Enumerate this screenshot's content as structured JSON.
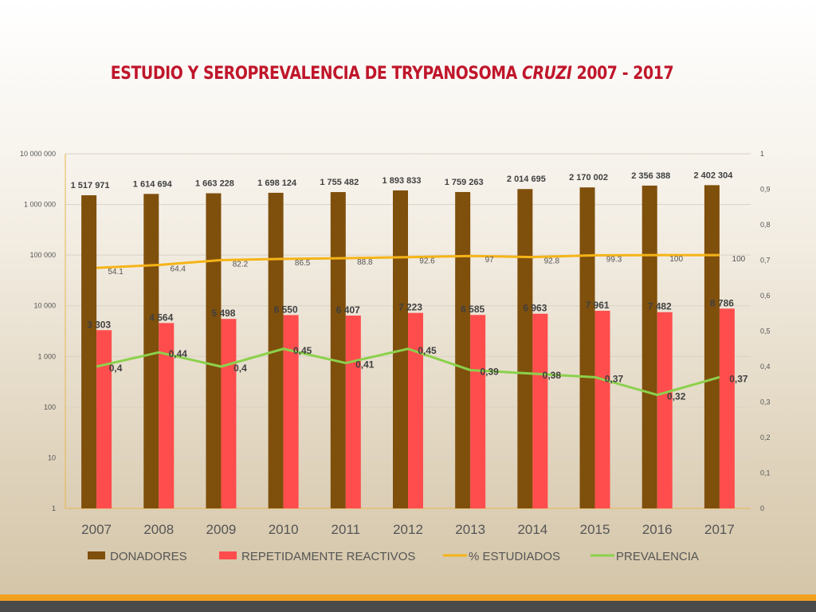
{
  "slide": {
    "title_main": "ESTUDIO Y SEROPREVALENCIA DE TRYPANOSOMA ",
    "title_italic": "CRUZI",
    "title_tail": " 2007 - 2017"
  },
  "colors": {
    "donadores": "#7f4f0c",
    "reactivos": "#ff4d4d",
    "estudiados": "#f5b417",
    "prevalencia": "#8bd14c",
    "title": "#c0162b"
  },
  "chart_data": {
    "type": "bar",
    "categories": [
      "2007",
      "2008",
      "2009",
      "2010",
      "2011",
      "2012",
      "2013",
      "2014",
      "2015",
      "2016",
      "2017"
    ],
    "y_left": {
      "scale": "log",
      "ylim": [
        1,
        10000000
      ],
      "tick_labels": [
        "1",
        "10",
        "100",
        "1 000",
        "10 000",
        "100 000",
        "1 000 000",
        "10 000 000"
      ]
    },
    "y_right": {
      "scale": "linear",
      "ylim": [
        0,
        1
      ],
      "tick_labels": [
        "0",
        "0,1",
        "0,2",
        "0,3",
        "0,4",
        "0,5",
        "0,6",
        "0,7",
        "0,8",
        "0,9",
        "1"
      ]
    },
    "grid": true,
    "legend_position": "bottom",
    "series": [
      {
        "name": "DONADORES",
        "kind": "bar",
        "axis": "left",
        "values": [
          1517971,
          1614694,
          1663228,
          1698124,
          1755482,
          1893833,
          1759263,
          2014695,
          2170002,
          2356388,
          2402304
        ],
        "labels": [
          "1 517 971",
          "1 614 694",
          "1 663 228",
          "1 698 124",
          "1 755 482",
          "1 893 833",
          "1 759 263",
          "2 014 695",
          "2 170 002",
          "2 356 388",
          "2 402 304"
        ]
      },
      {
        "name": "REPETIDAMENTE REACTIVOS",
        "kind": "bar",
        "axis": "left",
        "values": [
          3303,
          4564,
          5498,
          6550,
          6407,
          7223,
          6585,
          6963,
          7961,
          7482,
          8786
        ],
        "labels": [
          "3 303",
          "4 564",
          "5 498",
          "6 550",
          "6 407",
          "7 223",
          "6 585",
          "6 963",
          "7 961",
          "7 482",
          "8 786"
        ]
      },
      {
        "name": "% ESTUDIADOS",
        "kind": "line",
        "axis": "left",
        "values": [
          54.1,
          64.4,
          82.2,
          86.5,
          88.8,
          92.6,
          97,
          92.8,
          99.3,
          100,
          100
        ],
        "labels": [
          "54.1",
          "64.4",
          "82.2",
          "86.5",
          "88.8",
          "92.6",
          "97",
          "92.8",
          "99.3",
          "100",
          "100"
        ]
      },
      {
        "name": "PREVALENCIA",
        "kind": "line",
        "axis": "right",
        "values": [
          0.4,
          0.44,
          0.4,
          0.45,
          0.41,
          0.45,
          0.39,
          0.38,
          0.37,
          0.32,
          0.37
        ],
        "labels": [
          "0,4",
          "0,44",
          "0,4",
          "0,45",
          "0,41",
          "0,45",
          "0,39",
          "0,38",
          "0,37",
          "0,32",
          "0,37"
        ]
      }
    ]
  }
}
